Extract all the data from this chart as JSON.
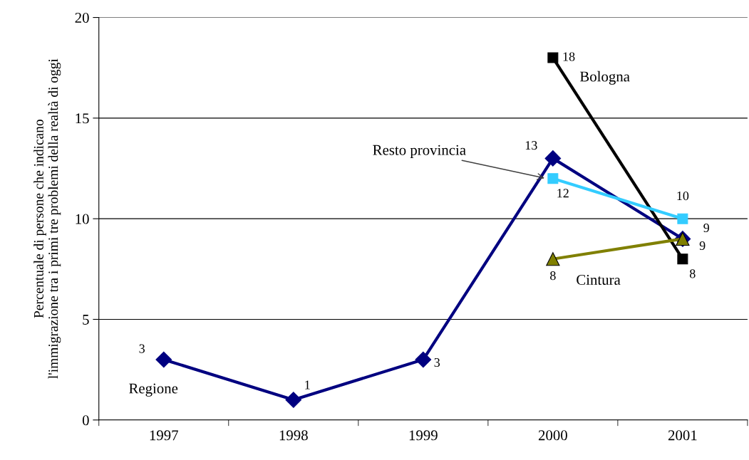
{
  "chart_data": {
    "type": "line",
    "ylabel": "Percentuale di persone che indicano\nl'immigrazione tra i primi tre problemi della realtà di oggi",
    "categories": [
      "1997",
      "1998",
      "1999",
      "2000",
      "2001"
    ],
    "series": [
      {
        "name": "Regione",
        "color": "#000080",
        "marker": "diamond",
        "values": [
          3,
          1,
          3,
          13,
          9
        ]
      },
      {
        "name": "Bologna",
        "color": "#000000",
        "marker": "square",
        "values": [
          null,
          null,
          null,
          18,
          8
        ]
      },
      {
        "name": "Resto provincia",
        "color": "#33ccff",
        "marker": "square",
        "values": [
          null,
          null,
          null,
          12,
          10
        ]
      },
      {
        "name": "Cintura",
        "color": "#808000",
        "marker": "triangle",
        "values": [
          null,
          null,
          null,
          8,
          9
        ]
      }
    ],
    "ylim": [
      0,
      20
    ],
    "yticks": [
      0,
      5,
      10,
      15,
      20
    ],
    "grid": "y",
    "legend": false,
    "data_labels": true,
    "line_style": "solid"
  }
}
